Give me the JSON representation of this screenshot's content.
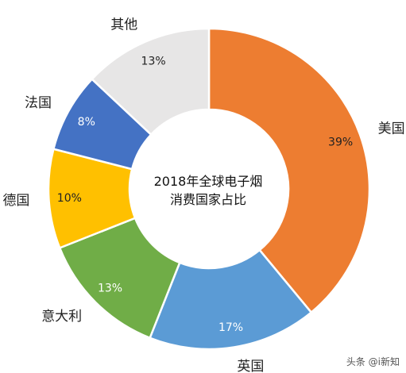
{
  "chart_data": {
    "type": "pie",
    "variant": "donut",
    "title_lines": [
      "2018年全球电子烟",
      "消费国家占比"
    ],
    "slices": [
      {
        "label": "美国",
        "value": 39,
        "pct_label": "39%",
        "color": "#ED7D31",
        "label_color": "#222222"
      },
      {
        "label": "英国",
        "value": 17,
        "pct_label": "17%",
        "color": "#5B9BD5",
        "label_color": "#ffffff"
      },
      {
        "label": "意大利",
        "value": 13,
        "pct_label": "13%",
        "color": "#70AD47",
        "label_color": "#ffffff"
      },
      {
        "label": "德国",
        "value": 10,
        "pct_label": "10%",
        "color": "#FFC000",
        "label_color": "#222222"
      },
      {
        "label": "法国",
        "value": 8,
        "pct_label": "8%",
        "color": "#4472C4",
        "label_color": "#ffffff"
      },
      {
        "label": "其他",
        "value": 13,
        "pct_label": "13%",
        "color": "#E7E6E6",
        "label_color": "#222222"
      }
    ]
  },
  "watermark": "头条 @i新知"
}
